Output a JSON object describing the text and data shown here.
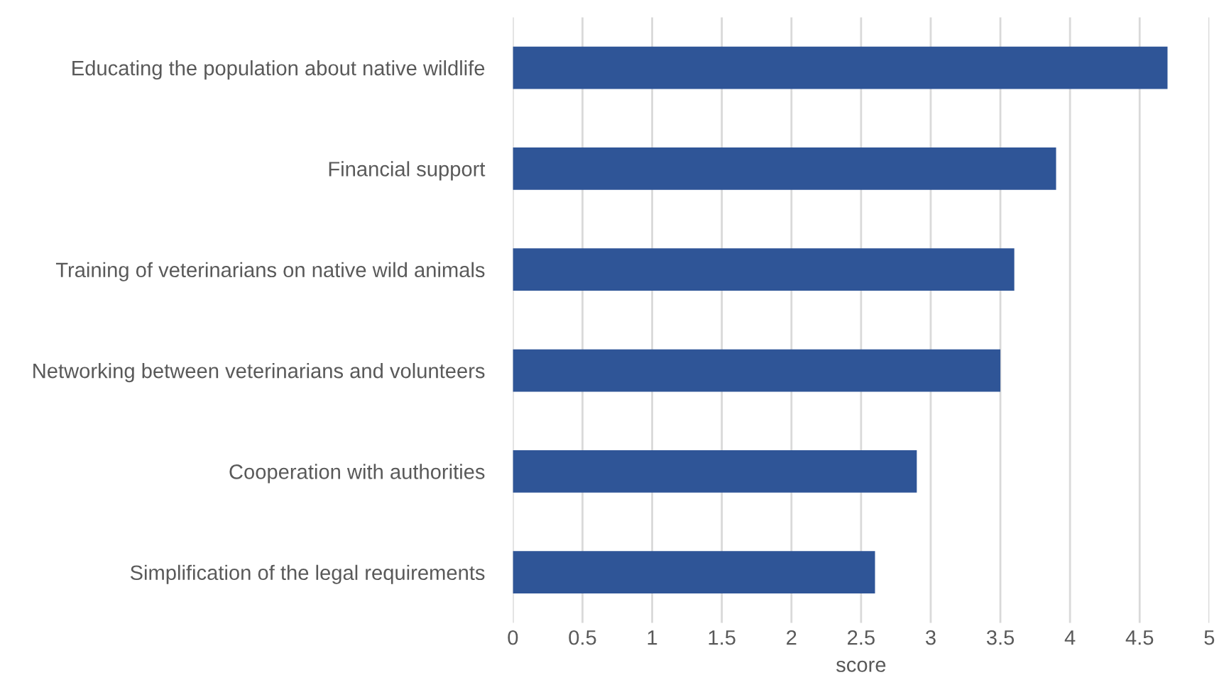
{
  "chart_data": {
    "type": "bar",
    "orientation": "horizontal",
    "xlabel": "score",
    "categories": [
      "Educating the population about native wildlife",
      "Financial support",
      "Training of veterinarians on native wild animals",
      "Networking between veterinarians and volunteers",
      "Cooperation with authorities",
      "Simplification of the legal requirements"
    ],
    "values": [
      4.7,
      3.9,
      3.6,
      3.5,
      2.9,
      2.6
    ],
    "color": "#2f5597",
    "xlim": [
      0,
      5
    ],
    "xticks": [
      0,
      0.5,
      1,
      1.5,
      2,
      2.5,
      3,
      3.5,
      4,
      4.5,
      5
    ],
    "grid": "x",
    "legend": false
  }
}
